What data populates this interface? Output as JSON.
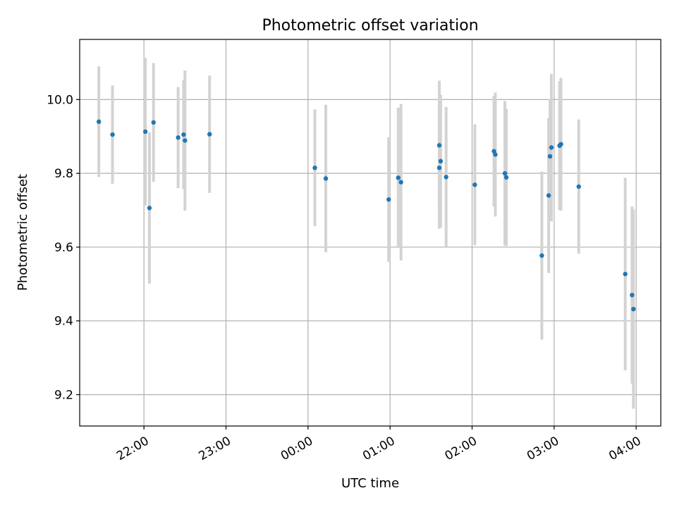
{
  "chart_data": {
    "type": "scatter",
    "title": "Photometric offset variation",
    "xlabel": "UTC time",
    "ylabel": "Photometric offset",
    "grid": true,
    "xlim": [
      "21:13",
      "04:18"
    ],
    "ylim": [
      9.115,
      10.163
    ],
    "xticks": [
      "22:00",
      "23:00",
      "00:00",
      "01:00",
      "02:00",
      "03:00",
      "04:00"
    ],
    "yticks": [
      9.2,
      9.4,
      9.6,
      9.8,
      10.0
    ],
    "colors": {
      "point": "#1f77b4",
      "errorbar": "#d3d3d3",
      "grid": "#b0b0b0"
    },
    "points": [
      {
        "t": "21:27",
        "y": 9.94,
        "err": 0.15
      },
      {
        "t": "21:37",
        "y": 9.905,
        "err": 0.133
      },
      {
        "t": "22:01",
        "y": 9.913,
        "err": 0.2
      },
      {
        "t": "22:04",
        "y": 9.706,
        "err": 0.205
      },
      {
        "t": "22:07",
        "y": 9.938,
        "err": 0.161
      },
      {
        "t": "22:25",
        "y": 9.897,
        "err": 0.137
      },
      {
        "t": "22:29",
        "y": 9.905,
        "err": 0.148
      },
      {
        "t": "22:30",
        "y": 9.889,
        "err": 0.19
      },
      {
        "t": "22:48",
        "y": 9.906,
        "err": 0.159
      },
      {
        "t": "00:05",
        "y": 9.815,
        "err": 0.158
      },
      {
        "t": "00:13",
        "y": 9.786,
        "err": 0.2
      },
      {
        "t": "00:59",
        "y": 9.729,
        "err": 0.169
      },
      {
        "t": "01:06",
        "y": 9.788,
        "err": 0.19
      },
      {
        "t": "01:08",
        "y": 9.776,
        "err": 0.212
      },
      {
        "t": "01:36",
        "y": 9.815,
        "err": 0.165
      },
      {
        "t": "01:36",
        "y": 9.876,
        "err": 0.175
      },
      {
        "t": "01:37",
        "y": 9.833,
        "err": 0.18
      },
      {
        "t": "01:41",
        "y": 9.79,
        "err": 0.19
      },
      {
        "t": "02:02",
        "y": 9.769,
        "err": 0.164
      },
      {
        "t": "02:16",
        "y": 9.86,
        "err": 0.15
      },
      {
        "t": "02:17",
        "y": 9.851,
        "err": 0.168
      },
      {
        "t": "02:24",
        "y": 9.8,
        "err": 0.196
      },
      {
        "t": "02:25",
        "y": 9.789,
        "err": 0.186
      },
      {
        "t": "02:51",
        "y": 9.577,
        "err": 0.228
      },
      {
        "t": "02:56",
        "y": 9.74,
        "err": 0.21
      },
      {
        "t": "02:57",
        "y": 9.846,
        "err": 0.155
      },
      {
        "t": "02:58",
        "y": 9.87,
        "err": 0.2
      },
      {
        "t": "03:04",
        "y": 9.875,
        "err": 0.175
      },
      {
        "t": "03:05",
        "y": 9.879,
        "err": 0.18
      },
      {
        "t": "03:18",
        "y": 9.764,
        "err": 0.182
      },
      {
        "t": "03:52",
        "y": 9.527,
        "err": 0.261
      },
      {
        "t": "03:57",
        "y": 9.47,
        "err": 0.24
      },
      {
        "t": "03:58",
        "y": 9.432,
        "err": 0.27
      }
    ]
  }
}
